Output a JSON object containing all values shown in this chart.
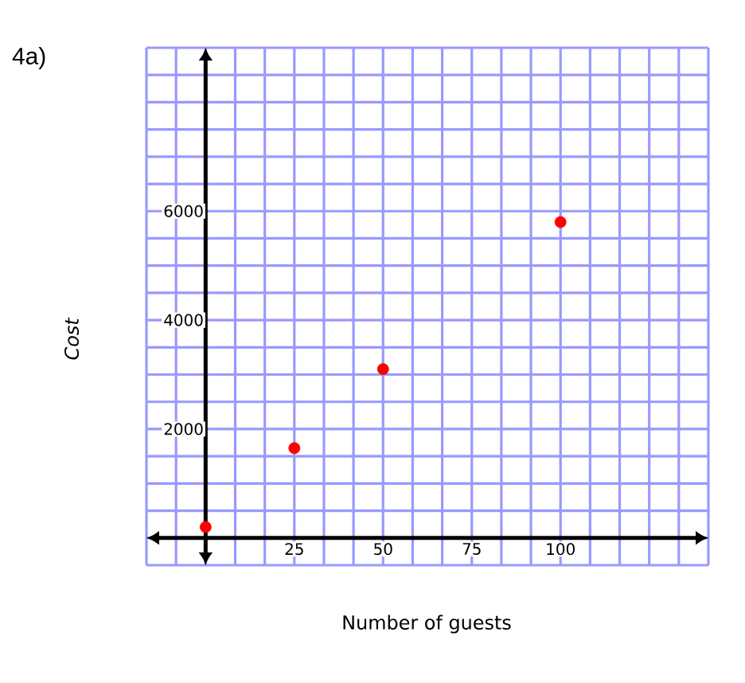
{
  "chart_data": {
    "type": "scatter",
    "title": "4a)",
    "xlabel": "Number of guests",
    "ylabel": "Cost",
    "x": [
      0,
      25,
      50,
      100
    ],
    "series": [
      {
        "color": "#ff0000",
        "values": [
          200,
          1650,
          3100,
          5800
        ]
      }
    ],
    "xlim": [
      -16.67,
      141.67
    ],
    "ylim": [
      -500,
      9000
    ],
    "xticks": [
      25,
      50,
      75,
      100
    ],
    "yticks": [
      2000,
      4000,
      6000
    ],
    "grid": true
  }
}
